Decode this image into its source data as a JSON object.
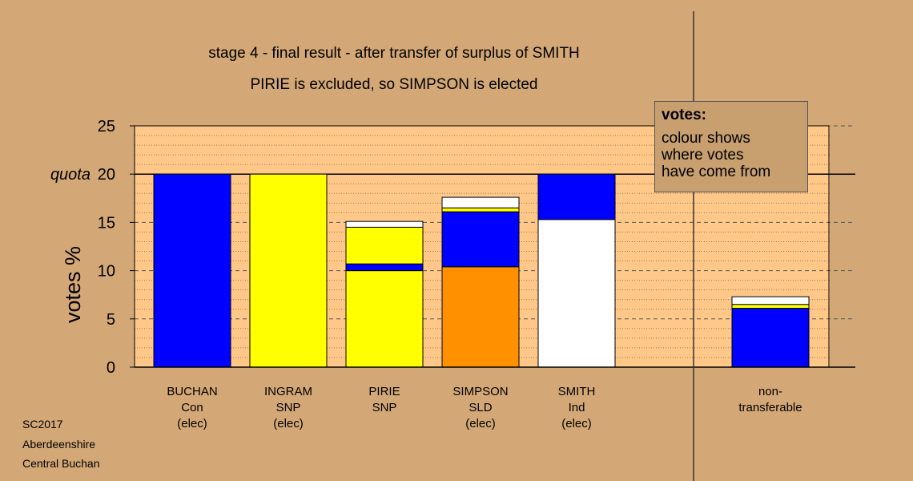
{
  "chart_data": {
    "type": "bar",
    "title": "stage 4 - final result - after transfer of surplus of SMITH",
    "subtitle": "PIRIE is excluded, so SIMPSON is elected",
    "ylabel": "votes %",
    "ylim": [
      0,
      25
    ],
    "yticks": [
      0,
      5,
      10,
      15,
      20,
      25
    ],
    "quota": {
      "value": 20,
      "label": "quota"
    },
    "categories": [
      {
        "name": "BUCHAN",
        "party": "Con",
        "status": "(elec)",
        "segments": [
          {
            "color": "#0000ff",
            "value": 20
          }
        ]
      },
      {
        "name": "INGRAM",
        "party": "SNP",
        "status": "(elec)",
        "segments": [
          {
            "color": "#ffff00",
            "value": 20
          }
        ]
      },
      {
        "name": "PIRIE",
        "party": "SNP",
        "status": "",
        "segments": [
          {
            "color": "#ffff00",
            "value": 10.0
          },
          {
            "color": "#0000ff",
            "value": 0.7
          },
          {
            "color": "#ffff00",
            "value": 3.8
          },
          {
            "color": "#ffffff",
            "value": 0.6
          }
        ]
      },
      {
        "name": "SIMPSON",
        "party": "SLD",
        "status": "(elec)",
        "segments": [
          {
            "color": "#ff9000",
            "value": 10.4
          },
          {
            "color": "#0000ff",
            "value": 5.7
          },
          {
            "color": "#ffff00",
            "value": 0.4
          },
          {
            "color": "#ffffff",
            "value": 1.1
          }
        ]
      },
      {
        "name": "SMITH",
        "party": "Ind",
        "status": "(elec)",
        "segments": [
          {
            "color": "#ffffff",
            "value": 15.3
          },
          {
            "color": "#0000ff",
            "value": 4.7
          }
        ]
      }
    ],
    "nontransferable": {
      "label1": "non-",
      "label2": "transferable",
      "segments": [
        {
          "color": "#0000ff",
          "value": 6.1
        },
        {
          "color": "#ffff00",
          "value": 0.4
        },
        {
          "color": "#ffffff",
          "value": 0.8
        }
      ]
    },
    "grid": true,
    "colors": {
      "background": "#d4a876",
      "plot_area": "#ffc888"
    }
  },
  "legend": {
    "title": "votes:",
    "lines": [
      "colour shows",
      "where votes",
      "have come from"
    ]
  },
  "footer": [
    "SC2017",
    "Aberdeenshire",
    "Central Buchan"
  ]
}
